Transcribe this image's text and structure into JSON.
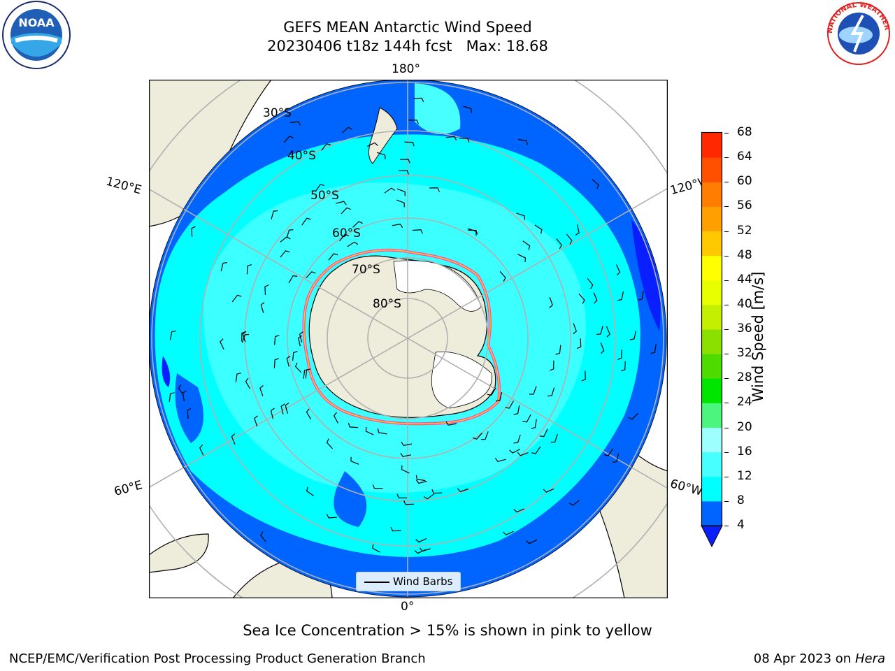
{
  "title": "GEFS MEAN Antarctic Wind Speed",
  "subtitle": "20230406 t18z 144h fcst   Max: 18.68",
  "map": {
    "projection": "south polar stereographic",
    "lon_labels": [
      "180°",
      "120°E",
      "120°W",
      "60°E",
      "60°W",
      "0°"
    ],
    "lat_labels": [
      "30°S",
      "40°S",
      "50°S",
      "60°S",
      "70°S",
      "80°S"
    ],
    "legend": "Wind Barbs"
  },
  "colorbar": {
    "label": "Wind Speed [m/s]",
    "ticks": [
      "4",
      "8",
      "12",
      "16",
      "20",
      "24",
      "28",
      "32",
      "36",
      "40",
      "44",
      "48",
      "52",
      "56",
      "60",
      "64",
      "68"
    ],
    "colors": [
      "#0064ff",
      "#00ffff",
      "#47ffff",
      "#9effff",
      "#4bf57e",
      "#00e600",
      "#4edb00",
      "#8be000",
      "#c4f000",
      "#e8ff00",
      "#ffff00",
      "#ffc800",
      "#ff9f00",
      "#ff7d00",
      "#ff5000",
      "#ff2800",
      "#ff0000"
    ],
    "extend_color": "#0a1fff"
  },
  "note": "Sea Ice Concentration > 15% is shown in pink to yellow",
  "footer_left": "NCEP/EMC/Verification Post Processing Product Generation Branch",
  "footer_right_prefix": "08 Apr 2023 on ",
  "footer_right_host": "Hera",
  "logos": {
    "left": "NOAA",
    "right": "NATIONAL WEATHER SERVICE"
  }
}
